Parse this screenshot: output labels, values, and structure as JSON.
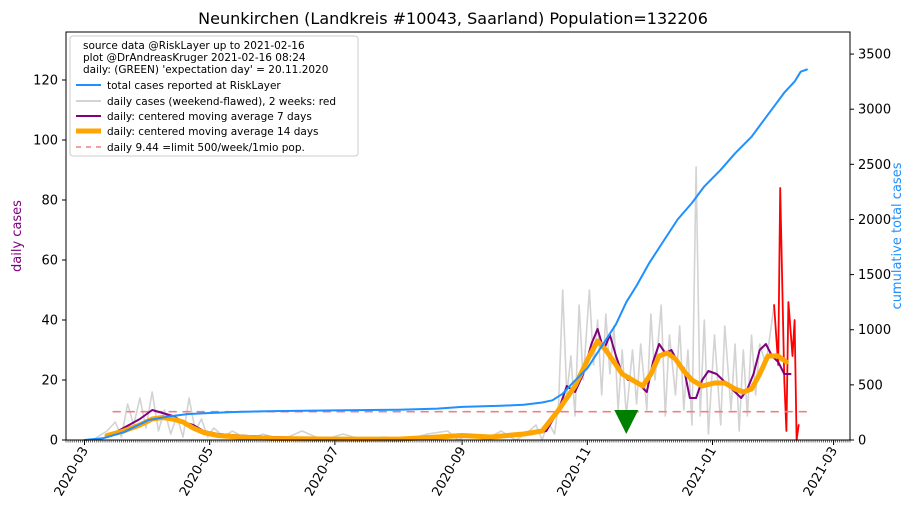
{
  "chart_data": {
    "type": "line",
    "title": "Neunkirchen (Landkreis #10043, Saarland) Population=132206",
    "ylabel_left": "daily cases",
    "ylabel_right": "cumulative total cases",
    "ylim_left": [
      0,
      136
    ],
    "ylim_right": [
      0,
      3700
    ],
    "xlim": [
      "2020-02-21",
      "2021-03-09"
    ],
    "grid": false,
    "legend_placement": "top-left",
    "left_ticks": [
      0,
      20,
      40,
      60,
      80,
      100,
      120
    ],
    "right_ticks": [
      0,
      500,
      1000,
      1500,
      2000,
      2500,
      3000,
      3500
    ],
    "x_ticks": [
      "2020-03",
      "2020-05",
      "2020-07",
      "2020-09",
      "2020-11",
      "2021-01",
      "2021-03"
    ],
    "legend_text": [
      "source data @RiskLayer up to 2021-02-16",
      "plot @DrAndreasKruger 2021-02-16 08:24",
      "daily: (GREEN) 'expectation day' = 20.11.2020"
    ],
    "colors": {
      "total": "#1e90ff",
      "daily": "#d3d3d3",
      "daily_recent": "#ff0000",
      "ma7": "#800080",
      "ma14": "#ffa500",
      "limit": "#f08080",
      "expectation": "#008000",
      "left_label": "#800080",
      "right_label": "#1e90ff"
    },
    "series": [
      {
        "name": "total cases reported at RiskLayer",
        "key": "total",
        "style": "line-blue",
        "points": [
          [
            "2020-03-01",
            0
          ],
          [
            "2020-03-10",
            15
          ],
          [
            "2020-03-20",
            70
          ],
          [
            "2020-04-01",
            180
          ],
          [
            "2020-04-10",
            210
          ],
          [
            "2020-04-20",
            235
          ],
          [
            "2020-05-01",
            245
          ],
          [
            "2020-05-15",
            255
          ],
          [
            "2020-06-01",
            262
          ],
          [
            "2020-07-01",
            268
          ],
          [
            "2020-08-01",
            275
          ],
          [
            "2020-08-20",
            285
          ],
          [
            "2020-09-01",
            300
          ],
          [
            "2020-09-20",
            310
          ],
          [
            "2020-10-01",
            320
          ],
          [
            "2020-10-10",
            340
          ],
          [
            "2020-10-15",
            360
          ],
          [
            "2020-10-20",
            420
          ],
          [
            "2020-10-25",
            520
          ],
          [
            "2020-11-01",
            650
          ],
          [
            "2020-11-08",
            850
          ],
          [
            "2020-11-15",
            1050
          ],
          [
            "2020-11-20",
            1250
          ],
          [
            "2020-11-25",
            1400
          ],
          [
            "2020-12-01",
            1600
          ],
          [
            "2020-12-08",
            1800
          ],
          [
            "2020-12-15",
            2000
          ],
          [
            "2020-12-22",
            2150
          ],
          [
            "2020-12-28",
            2300
          ],
          [
            "2021-01-05",
            2450
          ],
          [
            "2021-01-12",
            2600
          ],
          [
            "2021-01-20",
            2750
          ],
          [
            "2021-01-26",
            2900
          ],
          [
            "2021-02-01",
            3050
          ],
          [
            "2021-02-05",
            3150
          ],
          [
            "2021-02-10",
            3250
          ],
          [
            "2021-02-13",
            3340
          ],
          [
            "2021-02-16",
            3360
          ]
        ]
      },
      {
        "name": "daily cases (weekend-flawed), 2 weeks: red",
        "key": "daily",
        "style": "line-grey",
        "points": [
          [
            "2020-03-05",
            0
          ],
          [
            "2020-03-12",
            3
          ],
          [
            "2020-03-16",
            6
          ],
          [
            "2020-03-19",
            1
          ],
          [
            "2020-03-22",
            12
          ],
          [
            "2020-03-25",
            5
          ],
          [
            "2020-03-28",
            14
          ],
          [
            "2020-03-31",
            4
          ],
          [
            "2020-04-03",
            16
          ],
          [
            "2020-04-06",
            3
          ],
          [
            "2020-04-09",
            10
          ],
          [
            "2020-04-12",
            2
          ],
          [
            "2020-04-15",
            8
          ],
          [
            "2020-04-18",
            1
          ],
          [
            "2020-04-21",
            14
          ],
          [
            "2020-04-24",
            3
          ],
          [
            "2020-04-27",
            7
          ],
          [
            "2020-04-30",
            1
          ],
          [
            "2020-05-03",
            4
          ],
          [
            "2020-05-08",
            1
          ],
          [
            "2020-05-12",
            3
          ],
          [
            "2020-05-20",
            0
          ],
          [
            "2020-05-27",
            2
          ],
          [
            "2020-06-05",
            0
          ],
          [
            "2020-06-15",
            3
          ],
          [
            "2020-06-25",
            0
          ],
          [
            "2020-07-05",
            2
          ],
          [
            "2020-07-15",
            0
          ],
          [
            "2020-07-25",
            1
          ],
          [
            "2020-08-05",
            0
          ],
          [
            "2020-08-15",
            2
          ],
          [
            "2020-08-25",
            3
          ],
          [
            "2020-08-30",
            0
          ],
          [
            "2020-09-05",
            2
          ],
          [
            "2020-09-12",
            0
          ],
          [
            "2020-09-20",
            3
          ],
          [
            "2020-09-27",
            0
          ],
          [
            "2020-10-02",
            2
          ],
          [
            "2020-10-07",
            5
          ],
          [
            "2020-10-10",
            0
          ],
          [
            "2020-10-13",
            6
          ],
          [
            "2020-10-16",
            2
          ],
          [
            "2020-10-18",
            12
          ],
          [
            "2020-10-20",
            50
          ],
          [
            "2020-10-22",
            15
          ],
          [
            "2020-10-24",
            28
          ],
          [
            "2020-10-26",
            8
          ],
          [
            "2020-10-28",
            45
          ],
          [
            "2020-10-30",
            20
          ],
          [
            "2020-11-02",
            50
          ],
          [
            "2020-11-04",
            25
          ],
          [
            "2020-11-06",
            40
          ],
          [
            "2020-11-08",
            15
          ],
          [
            "2020-11-10",
            42
          ],
          [
            "2020-11-12",
            22
          ],
          [
            "2020-11-14",
            38
          ],
          [
            "2020-11-16",
            10
          ],
          [
            "2020-11-18",
            30
          ],
          [
            "2020-11-20",
            8
          ],
          [
            "2020-11-23",
            30
          ],
          [
            "2020-11-25",
            12
          ],
          [
            "2020-11-27",
            32
          ],
          [
            "2020-11-30",
            10
          ],
          [
            "2020-12-02",
            42
          ],
          [
            "2020-12-04",
            20
          ],
          [
            "2020-12-07",
            45
          ],
          [
            "2020-12-09",
            8
          ],
          [
            "2020-12-11",
            35
          ],
          [
            "2020-12-14",
            15
          ],
          [
            "2020-12-16",
            38
          ],
          [
            "2020-12-18",
            10
          ],
          [
            "2020-12-20",
            30
          ],
          [
            "2020-12-22",
            5
          ],
          [
            "2020-12-24",
            91
          ],
          [
            "2020-12-26",
            8
          ],
          [
            "2020-12-28",
            40
          ],
          [
            "2020-12-30",
            2
          ],
          [
            "2021-01-02",
            35
          ],
          [
            "2021-01-05",
            5
          ],
          [
            "2021-01-07",
            38
          ],
          [
            "2021-01-10",
            10
          ],
          [
            "2021-01-12",
            32
          ],
          [
            "2021-01-14",
            3
          ],
          [
            "2021-01-16",
            30
          ],
          [
            "2021-01-18",
            8
          ],
          [
            "2021-01-20",
            35
          ],
          [
            "2021-01-22",
            15
          ],
          [
            "2021-01-24",
            32
          ],
          [
            "2021-01-27",
            25
          ],
          [
            "2021-01-31",
            45
          ]
        ]
      },
      {
        "name": "",
        "key": "daily_recent",
        "style": "line-red",
        "points": [
          [
            "2021-01-31",
            45
          ],
          [
            "2021-02-02",
            25
          ],
          [
            "2021-02-03",
            84
          ],
          [
            "2021-02-05",
            20
          ],
          [
            "2021-02-06",
            3
          ],
          [
            "2021-02-07",
            46
          ],
          [
            "2021-02-09",
            28
          ],
          [
            "2021-02-10",
            40
          ],
          [
            "2021-02-11",
            0
          ],
          [
            "2021-02-12",
            5
          ]
        ]
      },
      {
        "name": "daily: centered moving average 7 days",
        "key": "ma7",
        "style": "line-purple",
        "points": [
          [
            "2020-03-12",
            1
          ],
          [
            "2020-03-20",
            4
          ],
          [
            "2020-03-28",
            7
          ],
          [
            "2020-04-03",
            10
          ],
          [
            "2020-04-08",
            9
          ],
          [
            "2020-04-13",
            8
          ],
          [
            "2020-04-18",
            6
          ],
          [
            "2020-04-23",
            5
          ],
          [
            "2020-04-28",
            3
          ],
          [
            "2020-05-05",
            2
          ],
          [
            "2020-05-15",
            1.5
          ],
          [
            "2020-06-01",
            1
          ],
          [
            "2020-07-01",
            0.5
          ],
          [
            "2020-08-01",
            0.5
          ],
          [
            "2020-08-20",
            1
          ],
          [
            "2020-09-05",
            1
          ],
          [
            "2020-09-20",
            1
          ],
          [
            "2020-10-05",
            2
          ],
          [
            "2020-10-12",
            3
          ],
          [
            "2020-10-18",
            10
          ],
          [
            "2020-10-22",
            18
          ],
          [
            "2020-10-26",
            16
          ],
          [
            "2020-10-30",
            22
          ],
          [
            "2020-11-03",
            32
          ],
          [
            "2020-11-06",
            37
          ],
          [
            "2020-11-09",
            30
          ],
          [
            "2020-11-12",
            35
          ],
          [
            "2020-11-15",
            28
          ],
          [
            "2020-11-18",
            22
          ],
          [
            "2020-11-21",
            20
          ],
          [
            "2020-11-24",
            20
          ],
          [
            "2020-11-27",
            18
          ],
          [
            "2020-11-30",
            16
          ],
          [
            "2020-12-03",
            26
          ],
          [
            "2020-12-06",
            32
          ],
          [
            "2020-12-09",
            29
          ],
          [
            "2020-12-12",
            30
          ],
          [
            "2020-12-15",
            26
          ],
          [
            "2020-12-18",
            24
          ],
          [
            "2020-12-21",
            14
          ],
          [
            "2020-12-24",
            14
          ],
          [
            "2020-12-27",
            20
          ],
          [
            "2020-12-30",
            23
          ],
          [
            "2021-01-03",
            22
          ],
          [
            "2021-01-06",
            20
          ],
          [
            "2021-01-09",
            18
          ],
          [
            "2021-01-12",
            16
          ],
          [
            "2021-01-15",
            14
          ],
          [
            "2021-01-18",
            17
          ],
          [
            "2021-01-21",
            22
          ],
          [
            "2021-01-24",
            30
          ],
          [
            "2021-01-27",
            32
          ],
          [
            "2021-01-30",
            28
          ],
          [
            "2021-02-02",
            26
          ],
          [
            "2021-02-05",
            22
          ],
          [
            "2021-02-08",
            22
          ]
        ]
      },
      {
        "name": "daily: centered moving average 14 days",
        "key": "ma14",
        "style": "line-orange-thick",
        "points": [
          [
            "2020-03-12",
            1.5
          ],
          [
            "2020-03-20",
            3
          ],
          [
            "2020-03-28",
            5
          ],
          [
            "2020-04-03",
            7
          ],
          [
            "2020-04-08",
            7.5
          ],
          [
            "2020-04-13",
            7
          ],
          [
            "2020-04-18",
            6
          ],
          [
            "2020-04-23",
            4
          ],
          [
            "2020-04-28",
            2.5
          ],
          [
            "2020-05-05",
            1.5
          ],
          [
            "2020-05-15",
            1
          ],
          [
            "2020-06-01",
            0.5
          ],
          [
            "2020-07-01",
            0.3
          ],
          [
            "2020-08-01",
            0.3
          ],
          [
            "2020-08-20",
            1
          ],
          [
            "2020-09-01",
            1.5
          ],
          [
            "2020-09-15",
            1
          ],
          [
            "2020-10-01",
            2
          ],
          [
            "2020-10-10",
            3
          ],
          [
            "2020-10-18",
            10
          ],
          [
            "2020-10-26",
            18
          ],
          [
            "2020-11-02",
            28
          ],
          [
            "2020-11-06",
            33
          ],
          [
            "2020-11-10",
            30
          ],
          [
            "2020-11-14",
            26
          ],
          [
            "2020-11-18",
            22
          ],
          [
            "2020-11-23",
            20
          ],
          [
            "2020-11-28",
            18
          ],
          [
            "2020-12-02",
            22
          ],
          [
            "2020-12-06",
            28
          ],
          [
            "2020-12-10",
            29
          ],
          [
            "2020-12-14",
            27
          ],
          [
            "2020-12-18",
            23
          ],
          [
            "2020-12-22",
            20
          ],
          [
            "2020-12-27",
            18
          ],
          [
            "2021-01-02",
            19
          ],
          [
            "2021-01-07",
            19
          ],
          [
            "2021-01-12",
            17
          ],
          [
            "2021-01-16",
            16
          ],
          [
            "2021-01-20",
            17
          ],
          [
            "2021-01-24",
            22
          ],
          [
            "2021-01-28",
            28
          ],
          [
            "2021-02-02",
            28
          ],
          [
            "2021-02-06",
            26
          ]
        ]
      },
      {
        "name": "daily 9.44 =limit 500/week/1mio pop.",
        "key": "limit",
        "style": "line-dashed",
        "points": [
          [
            "2020-03-15",
            9.44
          ],
          [
            "2021-02-16",
            9.44
          ]
        ]
      }
    ],
    "expectation_marker": {
      "date": "2020-11-20",
      "value": 5
    }
  }
}
